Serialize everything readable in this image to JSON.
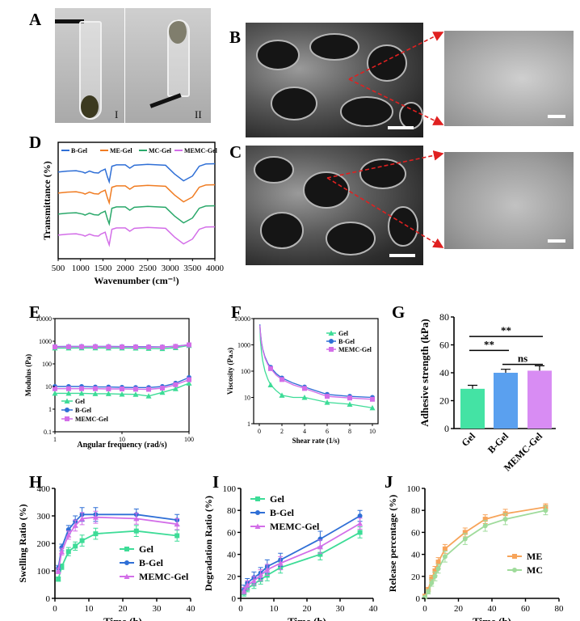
{
  "panels": {
    "A": {
      "label": "A",
      "sub1": "I",
      "sub2": "II"
    },
    "B": {
      "label": "B"
    },
    "C": {
      "label": "C"
    },
    "D": {
      "label": "D"
    },
    "E": {
      "label": "E"
    },
    "F": {
      "label": "F"
    },
    "G": {
      "label": "G"
    },
    "H": {
      "label": "H"
    },
    "I": {
      "label": "I"
    },
    "J": {
      "label": "J"
    }
  },
  "colors": {
    "gel": "#3ddc97",
    "bgel": "#2f6fd6",
    "memc": "#d36ee8",
    "megel": "#f07c22",
    "mcgel": "#2aa86a",
    "g_gel": "#44e3a4",
    "g_bgel": "#5aa0ef",
    "g_memc": "#d88cf3",
    "me": "#f7a45a",
    "mc": "#9fdb9b"
  },
  "chart_data": [
    {
      "id": "D",
      "type": "line",
      "title": "",
      "xlabel": "Wavenumber (cm⁻¹)",
      "ylabel": "Transmittance (%)",
      "xlim": [
        500,
        4000
      ],
      "xticks": [
        500,
        1000,
        1500,
        2000,
        2500,
        3000,
        3500,
        4000
      ],
      "legend": [
        "B-Gel",
        "ME-Gel",
        "MC-Gel",
        "MEMC-Gel"
      ],
      "series": [
        {
          "name": "B-Gel",
          "offset": 3
        },
        {
          "name": "ME-Gel",
          "offset": 2
        },
        {
          "name": "MC-Gel",
          "offset": 1
        },
        {
          "name": "MEMC-Gel",
          "offset": 0
        }
      ],
      "x": [
        500,
        700,
        900,
        1050,
        1100,
        1200,
        1300,
        1400,
        1450,
        1550,
        1600,
        1640,
        1700,
        1800,
        2000,
        2100,
        2200,
        2500,
        2900,
        3100,
        3300,
        3500,
        3650,
        3800,
        4000
      ],
      "profile": [
        0.55,
        0.6,
        0.62,
        0.55,
        0.5,
        0.6,
        0.52,
        0.5,
        0.6,
        0.7,
        0.3,
        0.05,
        0.85,
        0.92,
        0.92,
        0.75,
        0.9,
        0.95,
        0.9,
        0.45,
        0.1,
        0.35,
        0.85,
        0.97,
        0.98
      ]
    },
    {
      "id": "E",
      "type": "line",
      "xlabel": "Angular frequency (rad/s)",
      "ylabel": "Modulus (Pa)",
      "xscale": "log",
      "yscale": "log",
      "xlim": [
        1,
        100
      ],
      "ylim": [
        0.1,
        10000
      ],
      "xticks": [
        "1",
        "10",
        "100"
      ],
      "yticks": [
        "0.1",
        "1",
        "10",
        "100",
        "1000",
        "10000"
      ],
      "legend": [
        "Gel",
        "B-Gel",
        "MEMC-Gel"
      ],
      "x": [
        1,
        1.6,
        2.5,
        4,
        6.3,
        10,
        16,
        25,
        40,
        63,
        100
      ],
      "series": [
        {
          "name": "Gel G'",
          "values": [
            500,
            500,
            505,
            505,
            500,
            500,
            495,
            480,
            470,
            520,
            650
          ]
        },
        {
          "name": "B-Gel G'",
          "values": [
            580,
            585,
            590,
            590,
            585,
            580,
            575,
            570,
            560,
            600,
            700
          ]
        },
        {
          "name": "MEMC-Gel G'",
          "values": [
            560,
            565,
            570,
            570,
            565,
            560,
            555,
            550,
            545,
            590,
            690
          ]
        },
        {
          "name": "Gel G''",
          "values": [
            5,
            5,
            5,
            4.8,
            4.8,
            4.6,
            4.5,
            3.8,
            5.5,
            8,
            14
          ]
        },
        {
          "name": "B-Gel G''",
          "values": [
            10,
            10,
            10,
            9.5,
            9.5,
            9.2,
            9,
            9,
            10,
            14,
            25
          ]
        },
        {
          "name": "MEMC-Gel G''",
          "values": [
            8,
            8,
            8,
            8,
            7.8,
            7.8,
            7.6,
            7.5,
            8.5,
            12,
            20
          ]
        }
      ]
    },
    {
      "id": "F",
      "type": "line",
      "xlabel": "Shear rate (1/s)",
      "ylabel": "Viscosity (Pa.s)",
      "yscale": "log",
      "xlim": [
        -0.5,
        10.5
      ],
      "ylim": [
        1,
        10000
      ],
      "xticks": [
        "0",
        "2",
        "4",
        "6",
        "8",
        "10"
      ],
      "yticks": [
        "1",
        "10",
        "100",
        "1000",
        "10000"
      ],
      "legend": [
        "Gel",
        "B-Gel",
        "MEMC-Gel"
      ],
      "x": [
        0.05,
        0.1,
        0.2,
        0.3,
        0.5,
        0.75,
        1,
        1.5,
        2,
        3,
        4,
        6,
        8,
        10
      ],
      "series": [
        {
          "name": "Gel",
          "values": [
            5000,
            1500,
            500,
            250,
            100,
            50,
            30,
            18,
            12,
            10,
            10,
            6.5,
            5.5,
            4
          ]
        },
        {
          "name": "B-Gel",
          "values": [
            6000,
            3000,
            1200,
            700,
            350,
            200,
            140,
            80,
            55,
            35,
            25,
            13,
            11,
            10
          ]
        },
        {
          "name": "MEMC-Gel",
          "values": [
            5500,
            2800,
            1100,
            650,
            320,
            180,
            125,
            70,
            48,
            30,
            22,
            11,
            9.5,
            8.5
          ]
        }
      ]
    },
    {
      "id": "G",
      "type": "bar",
      "ylabel": "Adhesive strength (kPa)",
      "ylim": [
        0,
        80
      ],
      "yticks": [
        "0",
        "20",
        "40",
        "60",
        "80"
      ],
      "categories": [
        "Gel",
        "B-Gel",
        "MEMC-Gel"
      ],
      "values": [
        28.5,
        40,
        41.5
      ],
      "errors": [
        2.5,
        2.5,
        3.5
      ],
      "annotations": [
        {
          "text": "**",
          "from": 0,
          "to": 2,
          "y": 66
        },
        {
          "text": "**",
          "from": 0,
          "to": 1,
          "y": 56
        },
        {
          "text": "ns",
          "from": 1,
          "to": 2,
          "y": 46
        }
      ]
    },
    {
      "id": "H",
      "type": "line",
      "xlabel": "Time (h)",
      "ylabel": "Swelling Ratio (%)",
      "xlim": [
        0,
        40
      ],
      "ylim": [
        0,
        400
      ],
      "xticks": [
        "0",
        "10",
        "20",
        "30",
        "40"
      ],
      "yticks": [
        "0",
        "100",
        "200",
        "300",
        "400"
      ],
      "legend": [
        "Gel",
        "B-Gel",
        "MEMC-Gel"
      ],
      "x": [
        1,
        2,
        4,
        6,
        8,
        12,
        24,
        36
      ],
      "series": [
        {
          "name": "Gel",
          "values": [
            70,
            115,
            170,
            190,
            210,
            235,
            245,
            228
          ],
          "errors": [
            8,
            10,
            15,
            15,
            20,
            20,
            20,
            20
          ]
        },
        {
          "name": "B-Gel",
          "values": [
            110,
            185,
            250,
            280,
            305,
            305,
            305,
            285
          ],
          "errors": [
            10,
            12,
            15,
            20,
            25,
            25,
            20,
            20
          ]
        },
        {
          "name": "MEMC-Gel",
          "values": [
            100,
            170,
            230,
            265,
            290,
            295,
            290,
            270
          ],
          "errors": [
            10,
            12,
            15,
            20,
            22,
            22,
            20,
            20
          ]
        }
      ]
    },
    {
      "id": "I",
      "type": "line",
      "xlabel": "Time (h)",
      "ylabel": "Degradation Ratio (%)",
      "xlim": [
        0,
        40
      ],
      "ylim": [
        0,
        100
      ],
      "xticks": [
        "0",
        "10",
        "20",
        "30",
        "40"
      ],
      "yticks": [
        "0",
        "20",
        "40",
        "60",
        "80",
        "100"
      ],
      "legend": [
        "Gel",
        "B-Gel",
        "MEMC-Gel"
      ],
      "x": [
        1,
        2,
        4,
        6,
        8,
        12,
        24,
        36
      ],
      "series": [
        {
          "name": "Gel",
          "values": [
            5,
            9,
            13,
            17,
            21,
            28,
            40,
            60
          ],
          "errors": [
            3,
            3,
            4,
            4,
            5,
            5,
            5,
            5
          ]
        },
        {
          "name": "B-Gel",
          "values": [
            8,
            14,
            19,
            23,
            29,
            35,
            54,
            75
          ],
          "errors": [
            4,
            4,
            5,
            5,
            6,
            6,
            7,
            5
          ]
        },
        {
          "name": "MEMC-Gel",
          "values": [
            7,
            12,
            16,
            21,
            26,
            32,
            47,
            68
          ],
          "errors": [
            3,
            4,
            4,
            5,
            5,
            6,
            6,
            5
          ]
        }
      ]
    },
    {
      "id": "J",
      "type": "line",
      "xlabel": "Time (h)",
      "ylabel": "Release percentage (%)",
      "xlim": [
        0,
        80
      ],
      "ylim": [
        0,
        100
      ],
      "xticks": [
        "0",
        "20",
        "40",
        "60",
        "80"
      ],
      "yticks": [
        "0",
        "20",
        "40",
        "60",
        "80",
        "100"
      ],
      "legend": [
        "ME",
        "MC"
      ],
      "x": [
        0,
        2,
        4,
        6,
        8,
        12,
        24,
        36,
        48,
        72
      ],
      "series": [
        {
          "name": "ME",
          "values": [
            2,
            8,
            18,
            25,
            33,
            45,
            60,
            72,
            77,
            83
          ],
          "errors": [
            1,
            2,
            3,
            4,
            4,
            4,
            4,
            4,
            4,
            3
          ]
        },
        {
          "name": "MC",
          "values": [
            1,
            6,
            14,
            20,
            27,
            38,
            54,
            66,
            72,
            80
          ],
          "errors": [
            1,
            2,
            3,
            4,
            4,
            5,
            5,
            5,
            5,
            4
          ]
        }
      ]
    }
  ]
}
